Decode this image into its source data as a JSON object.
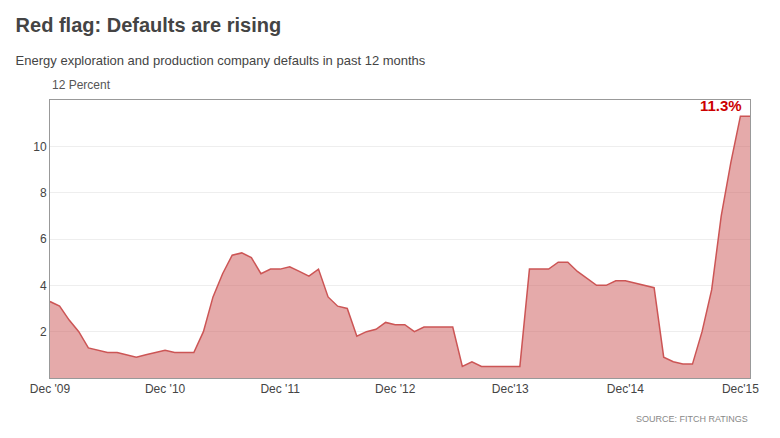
{
  "chart_data": {
    "type": "area",
    "title": "Red flag: Defaults are rising",
    "subtitle": "Energy exploration and production company defaults in past 12 months",
    "ylabel": "12 Percent",
    "source": "SOURCE: FITCH RATINGS",
    "annotations": [
      {
        "text": "11.3%",
        "x": 73,
        "y": 11.3,
        "color": "#cc0000"
      }
    ],
    "x": [
      0,
      1,
      2,
      3,
      4,
      5,
      6,
      7,
      8,
      9,
      10,
      11,
      12,
      13,
      14,
      15,
      16,
      17,
      18,
      19,
      20,
      21,
      22,
      23,
      24,
      25,
      26,
      27,
      28,
      29,
      30,
      31,
      32,
      33,
      34,
      35,
      36,
      37,
      38,
      39,
      40,
      41,
      42,
      43,
      44,
      45,
      46,
      47,
      48,
      49,
      50,
      51,
      52,
      53,
      54,
      55,
      56,
      57,
      58,
      59,
      60,
      61,
      62,
      63,
      64,
      65,
      66,
      67,
      68,
      69,
      70,
      71,
      72,
      73
    ],
    "values": [
      3.3,
      3.1,
      2.5,
      2.0,
      1.3,
      1.2,
      1.1,
      1.1,
      1.0,
      0.9,
      1.0,
      1.1,
      1.2,
      1.1,
      1.1,
      1.1,
      2.0,
      3.5,
      4.5,
      5.3,
      5.4,
      5.2,
      4.5,
      4.7,
      4.7,
      4.8,
      4.6,
      4.4,
      4.7,
      3.5,
      3.1,
      3.0,
      1.8,
      2.0,
      2.1,
      2.4,
      2.3,
      2.3,
      2.0,
      2.2,
      2.2,
      2.2,
      2.2,
      0.5,
      0.7,
      0.5,
      0.5,
      0.5,
      0.5,
      0.5,
      4.7,
      4.7,
      4.7,
      5.0,
      5.0,
      4.6,
      4.3,
      4.0,
      4.0,
      4.2,
      4.2,
      4.1,
      4.0,
      3.9,
      0.9,
      0.7,
      0.6,
      0.6,
      2.0,
      3.8,
      7.0,
      9.3,
      11.3,
      11.3
    ],
    "color": "#cc5555",
    "xlim": [
      0,
      73
    ],
    "xticks": [
      {
        "value": 0,
        "label": "Dec '09"
      },
      {
        "value": 12,
        "label": "Dec '10"
      },
      {
        "value": 24,
        "label": "Dec '11"
      },
      {
        "value": 36,
        "label": "Dec '12"
      },
      {
        "value": 48,
        "label": "Dec'13"
      },
      {
        "value": 60,
        "label": "Dec'14"
      },
      {
        "value": 72,
        "label": "Dec'15"
      }
    ],
    "ylim": [
      0,
      12
    ],
    "yticks": [
      2,
      4,
      6,
      8,
      10
    ],
    "grid": true
  }
}
